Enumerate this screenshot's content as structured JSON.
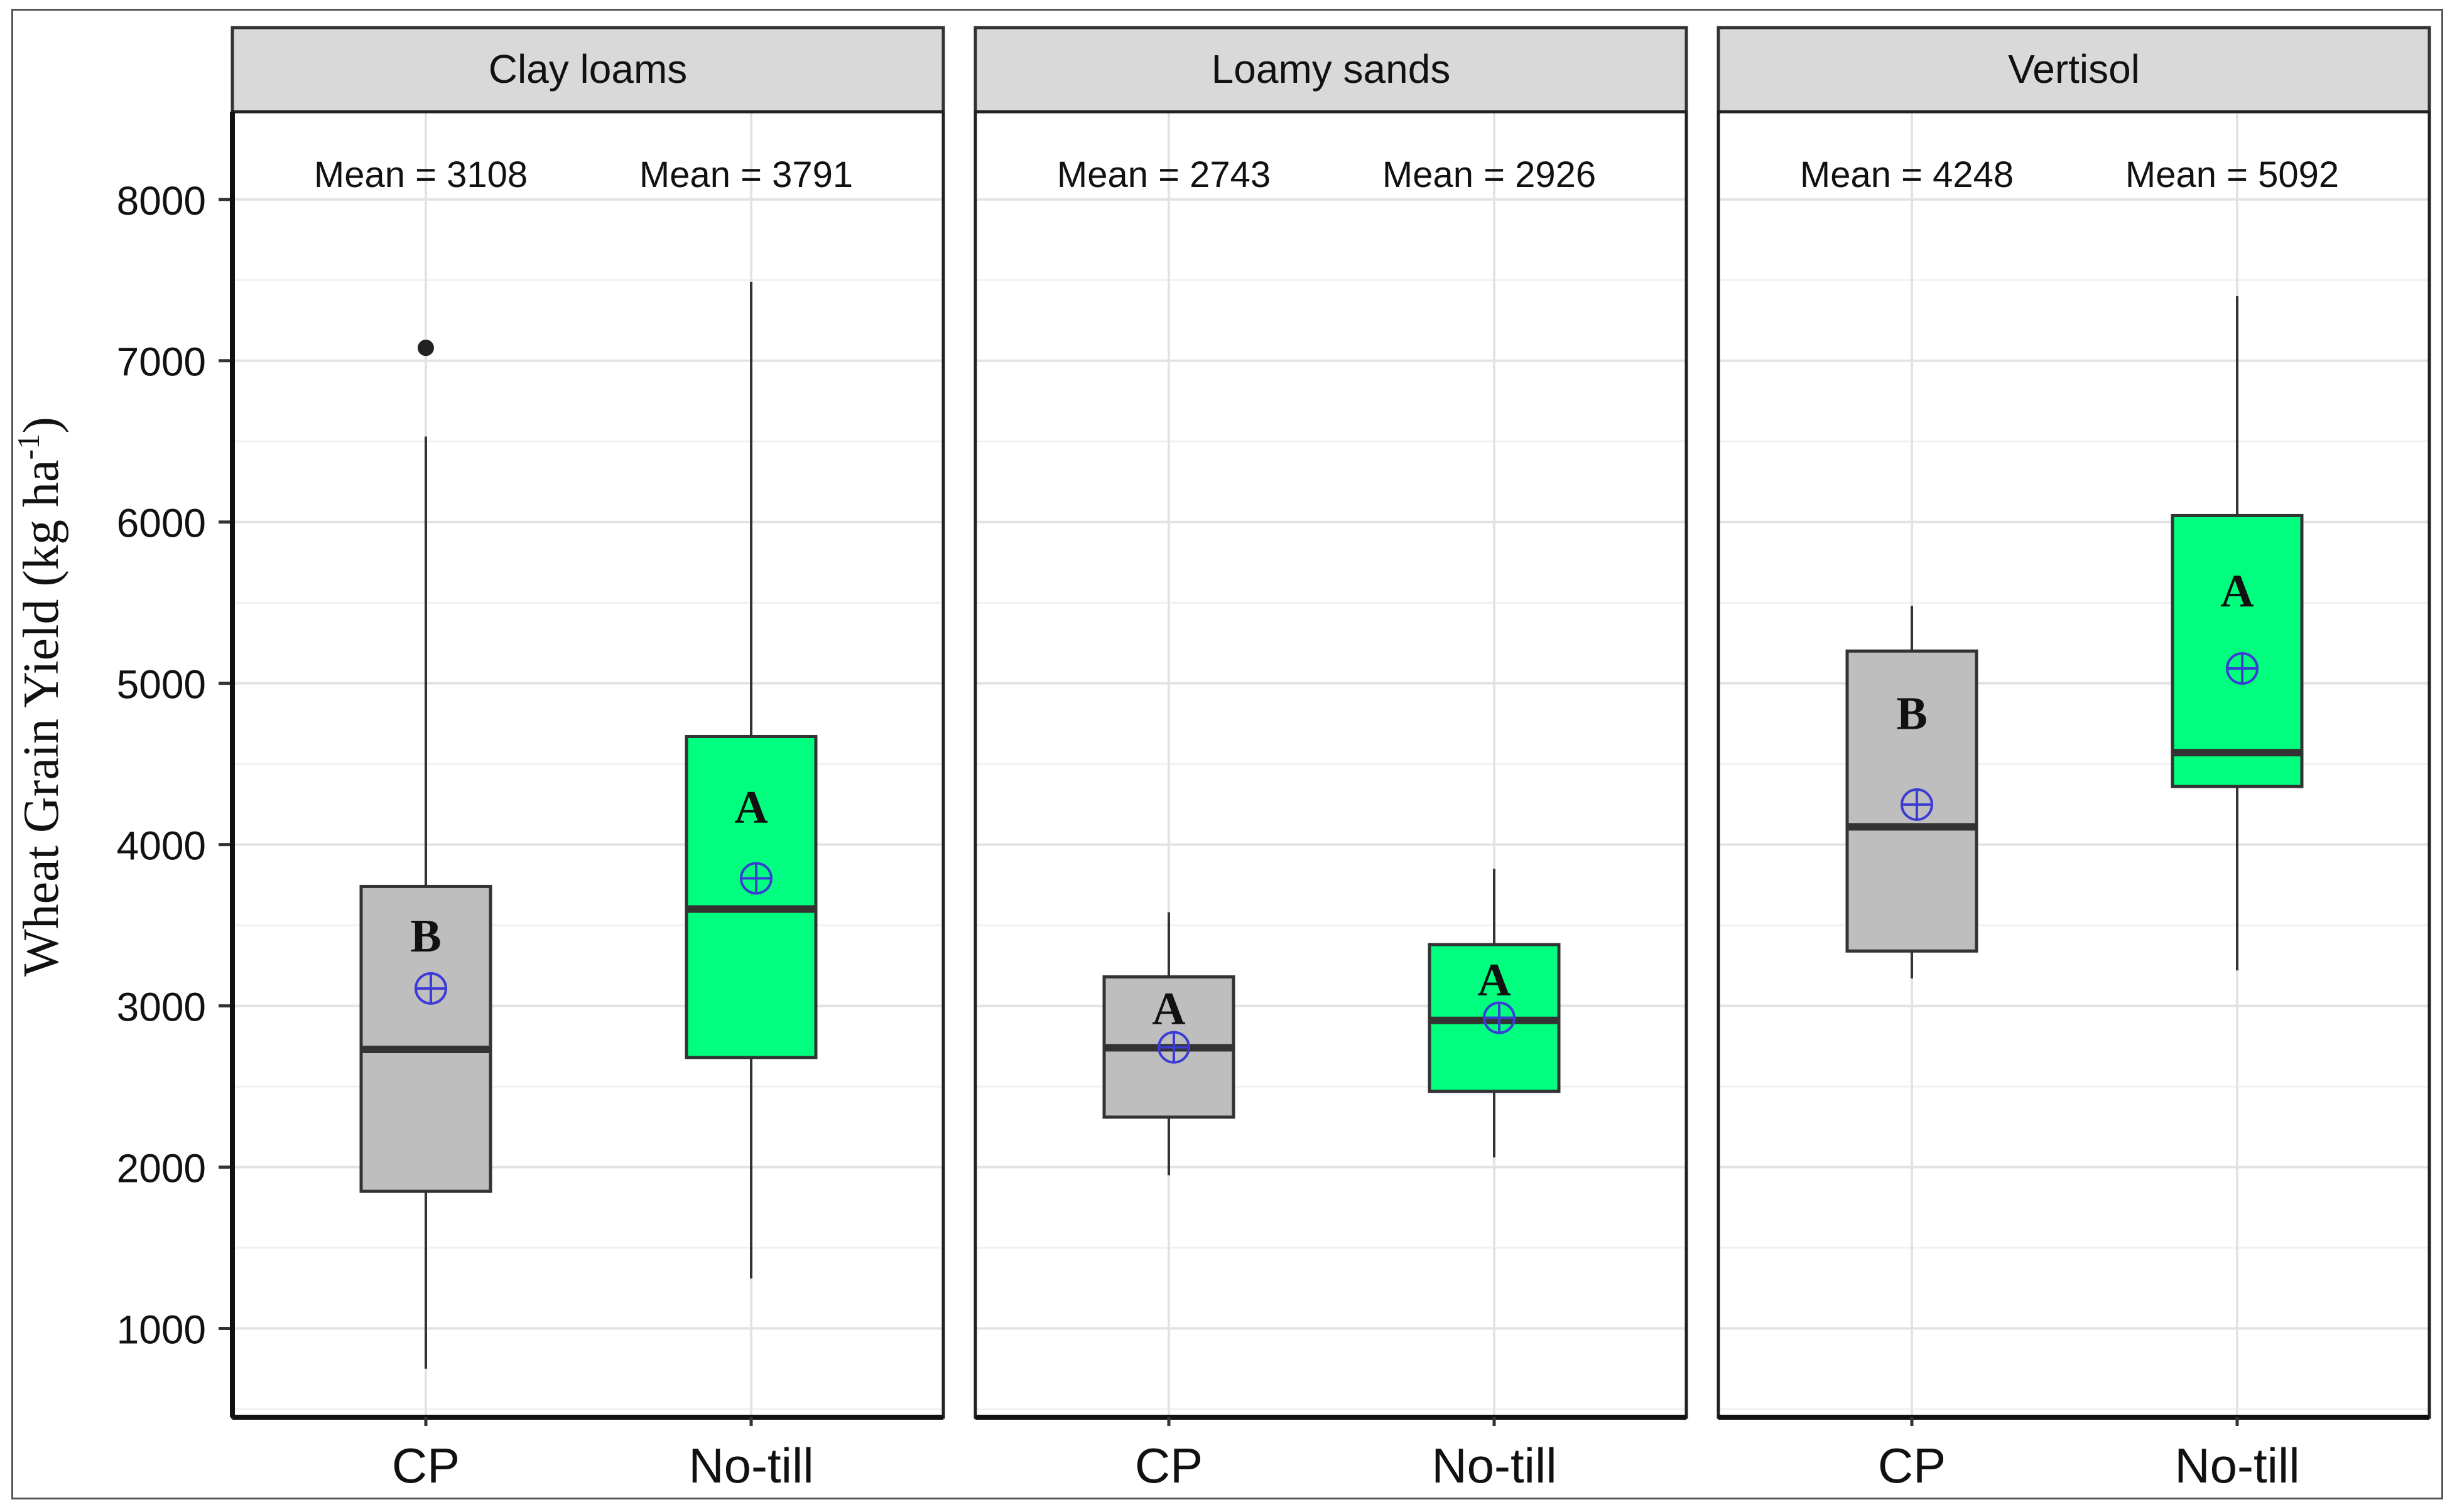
{
  "chart_data": {
    "type": "boxplot",
    "ylabel": "Wheat Grain Yield (kg ha",
    "ylabel_superscript": "-1",
    "ylabel_close": ")",
    "ylim": [
      500,
      8400
    ],
    "yticks": [
      1000,
      2000,
      3000,
      4000,
      5000,
      6000,
      7000,
      8000
    ],
    "ytick_labels": [
      "1000",
      "2000",
      "3000",
      "4000",
      "5000",
      "6000",
      "7000",
      "8000"
    ],
    "categories": [
      "CP",
      "No-till"
    ],
    "colors": {
      "CP": "#bebebe",
      "No-till": "#00ff7f",
      "mean_marker": "#3b3bd6"
    },
    "panels": [
      {
        "title": "Clay loams",
        "mean_labels": [
          "Mean = 3108",
          "Mean = 3791"
        ],
        "boxes": [
          {
            "category": "CP",
            "min": 750,
            "q1": 1850,
            "median": 2730,
            "q3": 3740,
            "max": 6530,
            "mean": 3108,
            "outliers": [
              7080
            ],
            "letter": "B",
            "letter_y": 3430
          },
          {
            "category": "No-till",
            "min": 1310,
            "q1": 2680,
            "median": 3600,
            "q3": 4670,
            "max": 7490,
            "mean": 3791,
            "outliers": [],
            "letter": "A",
            "letter_y": 4230
          }
        ]
      },
      {
        "title": "Loamy sands",
        "mean_labels": [
          "Mean = 2743",
          "Mean = 2926"
        ],
        "boxes": [
          {
            "category": "CP",
            "min": 1950,
            "q1": 2310,
            "median": 2740,
            "q3": 3180,
            "max": 3580,
            "mean": 2743,
            "outliers": [],
            "letter": "A",
            "letter_y": 2980
          },
          {
            "category": "No-till",
            "min": 2060,
            "q1": 2470,
            "median": 2910,
            "q3": 3380,
            "max": 3850,
            "mean": 2926,
            "outliers": [],
            "letter": "A",
            "letter_y": 3160
          }
        ]
      },
      {
        "title": "Vertisol",
        "mean_labels": [
          "Mean = 4248",
          "Mean = 5092"
        ],
        "boxes": [
          {
            "category": "CP",
            "min": 3170,
            "q1": 3340,
            "median": 4110,
            "q3": 5200,
            "max": 5480,
            "mean": 4248,
            "outliers": [],
            "letter": "B",
            "letter_y": 4810
          },
          {
            "category": "No-till",
            "min": 3220,
            "q1": 4360,
            "median": 4570,
            "q3": 6040,
            "max": 7400,
            "mean": 5092,
            "outliers": [],
            "letter": "A",
            "letter_y": 5570
          }
        ]
      }
    ]
  }
}
